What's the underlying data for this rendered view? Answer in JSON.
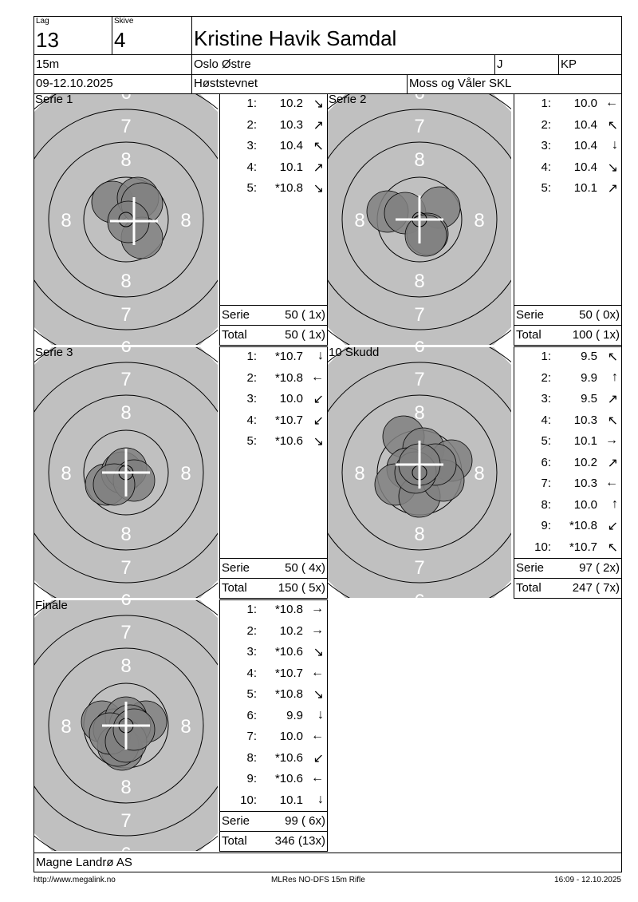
{
  "header": {
    "lag_label": "Lag",
    "lag": "13",
    "skive_label": "Skive",
    "skive": "4",
    "name": "Kristine Havik Samdal",
    "distance": "15m",
    "club": "Oslo Østre",
    "class": "J",
    "category": "KP",
    "date": "09-12.10.2025",
    "event": "Høststevnet",
    "organizer": "Moss og Våler SKL"
  },
  "colors": {
    "target": "#c0c0c0",
    "shot": "#808080",
    "cross": "#ffffff"
  },
  "ring_labels": {
    "outer": "6",
    "mid": "7",
    "inner": "8"
  },
  "series": [
    {
      "label": "Serie 1",
      "shots": [
        {
          "n": "1:",
          "v": "10.2",
          "a": "↘"
        },
        {
          "n": "2:",
          "v": "10.3",
          "a": "↗"
        },
        {
          "n": "3:",
          "v": "10.4",
          "a": "↖"
        },
        {
          "n": "4:",
          "v": "10.1",
          "a": "↗"
        },
        {
          "n": "5:",
          "v": "*10.8",
          "a": "↘"
        }
      ],
      "serie_label": "Serie",
      "serie": "50 ( 1x)",
      "total_label": "Total",
      "total": "50 ( 1x)"
    },
    {
      "label": "Serie 2",
      "shots": [
        {
          "n": "1:",
          "v": "10.0",
          "a": "←"
        },
        {
          "n": "2:",
          "v": "10.4",
          "a": "↖"
        },
        {
          "n": "3:",
          "v": "10.4",
          "a": "↓"
        },
        {
          "n": "4:",
          "v": "10.4",
          "a": "↘"
        },
        {
          "n": "5:",
          "v": "10.1",
          "a": "↗"
        }
      ],
      "serie_label": "Serie",
      "serie": "50 ( 0x)",
      "total_label": "Total",
      "total": "100 ( 1x)"
    },
    {
      "label": "Serie 3",
      "shots": [
        {
          "n": "1:",
          "v": "*10.7",
          "a": "↓"
        },
        {
          "n": "2:",
          "v": "*10.8",
          "a": "←"
        },
        {
          "n": "3:",
          "v": "10.0",
          "a": "↙"
        },
        {
          "n": "4:",
          "v": "*10.7",
          "a": "↙"
        },
        {
          "n": "5:",
          "v": "*10.6",
          "a": "↘"
        }
      ],
      "serie_label": "Serie",
      "serie": "50 ( 4x)",
      "total_label": "Total",
      "total": "150 ( 5x)"
    },
    {
      "label": "10 Skudd",
      "shots": [
        {
          "n": "1:",
          "v": "9.5",
          "a": "↖"
        },
        {
          "n": "2:",
          "v": "9.9",
          "a": "↑"
        },
        {
          "n": "3:",
          "v": "9.5",
          "a": "↗"
        },
        {
          "n": "4:",
          "v": "10.3",
          "a": "↖"
        },
        {
          "n": "5:",
          "v": "10.1",
          "a": "→"
        },
        {
          "n": "6:",
          "v": "10.2",
          "a": "↗"
        },
        {
          "n": "7:",
          "v": "10.3",
          "a": "←"
        },
        {
          "n": "8:",
          "v": "10.0",
          "a": "↑"
        },
        {
          "n": "9:",
          "v": "*10.8",
          "a": "↙"
        },
        {
          "n": "10:",
          "v": "*10.7",
          "a": "↖"
        }
      ],
      "serie_label": "Serie",
      "serie": "97 ( 2x)",
      "total_label": "Total",
      "total": "247 ( 7x)"
    },
    {
      "label": "Finale",
      "shots": [
        {
          "n": "1:",
          "v": "*10.8",
          "a": "→"
        },
        {
          "n": "2:",
          "v": "10.2",
          "a": "→"
        },
        {
          "n": "3:",
          "v": "*10.6",
          "a": "↘"
        },
        {
          "n": "4:",
          "v": "*10.7",
          "a": "←"
        },
        {
          "n": "5:",
          "v": "*10.8",
          "a": "↘"
        },
        {
          "n": "6:",
          "v": "9.9",
          "a": "↓"
        },
        {
          "n": "7:",
          "v": "10.0",
          "a": "←"
        },
        {
          "n": "8:",
          "v": "*10.6",
          "a": "↙"
        },
        {
          "n": "9:",
          "v": "*10.6",
          "a": "←"
        },
        {
          "n": "10:",
          "v": "10.1",
          "a": "↓"
        }
      ],
      "serie_label": "Serie",
      "serie": "99 ( 6x)",
      "total_label": "Total",
      "total": "346 (13x)"
    }
  ],
  "footer": {
    "company": "Magne Landrø AS",
    "url": "http://www.megalink.no",
    "software": "MLRes NO-DFS 15m Rifle",
    "timestamp": "16:09 - 12.10.2025"
  }
}
